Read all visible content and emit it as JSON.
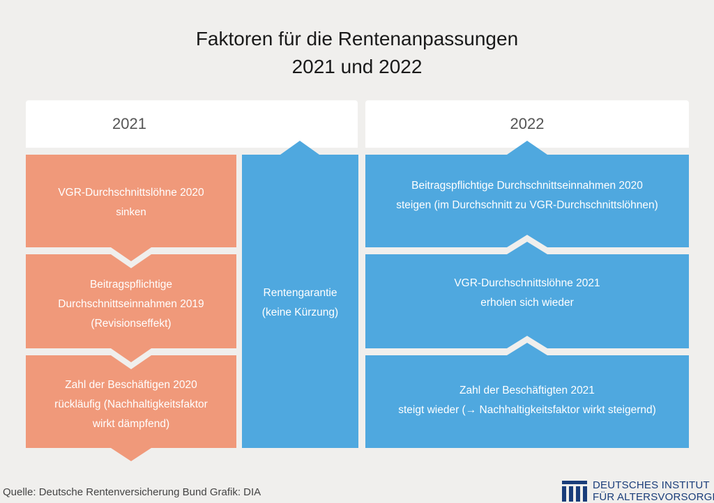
{
  "title": {
    "line1": "Faktoren für die Rentenanpassungen",
    "line2": "2021 und 2022"
  },
  "headers": {
    "y2021": "2021",
    "y2022": "2022"
  },
  "left_column": [
    {
      "line1": "VGR-Durchschnittslöhne 2020",
      "line2": "sinken",
      "line3": ""
    },
    {
      "line1": "Beitragspflichtige",
      "line2": "Durchschnittseinnahmen 2019",
      "line3": "(Revisionseffekt)"
    },
    {
      "line1": "Zahl der Beschäftigen 2020",
      "line2": "rückläufig (Nachhaltigkeitsfaktor",
      "line3": "wirkt dämpfend)"
    }
  ],
  "middle_column": {
    "line1": "Rentengarantie",
    "line2": "(keine Kürzung)"
  },
  "right_column": [
    {
      "line1": "Beitragspflichtige Durchschnittseinnahmen 2020",
      "line2": "steigen (im Durchschnitt zu VGR-Durchschnittslöhnen)"
    },
    {
      "line1": "VGR-Durchschnittslöhne 2021",
      "line2": "erholen sich wieder"
    },
    {
      "line1": "Zahl der Beschäftigten 2021",
      "line2": "steigt wieder (→ Nachhaltigkeitsfaktor wirkt steigernd)"
    }
  ],
  "footer": {
    "source": "Quelle: Deutsche Rentenversicherung Bund  Grafik: DIA"
  },
  "logo": {
    "line1": "DEUTSCHES INSTITUT",
    "line2": "FÜR ALTERSVORSORGE"
  },
  "colors": {
    "background": "#f0efed",
    "orange": "#f0997a",
    "blue": "#4fa8df",
    "logo_blue": "#1a3d7a"
  }
}
